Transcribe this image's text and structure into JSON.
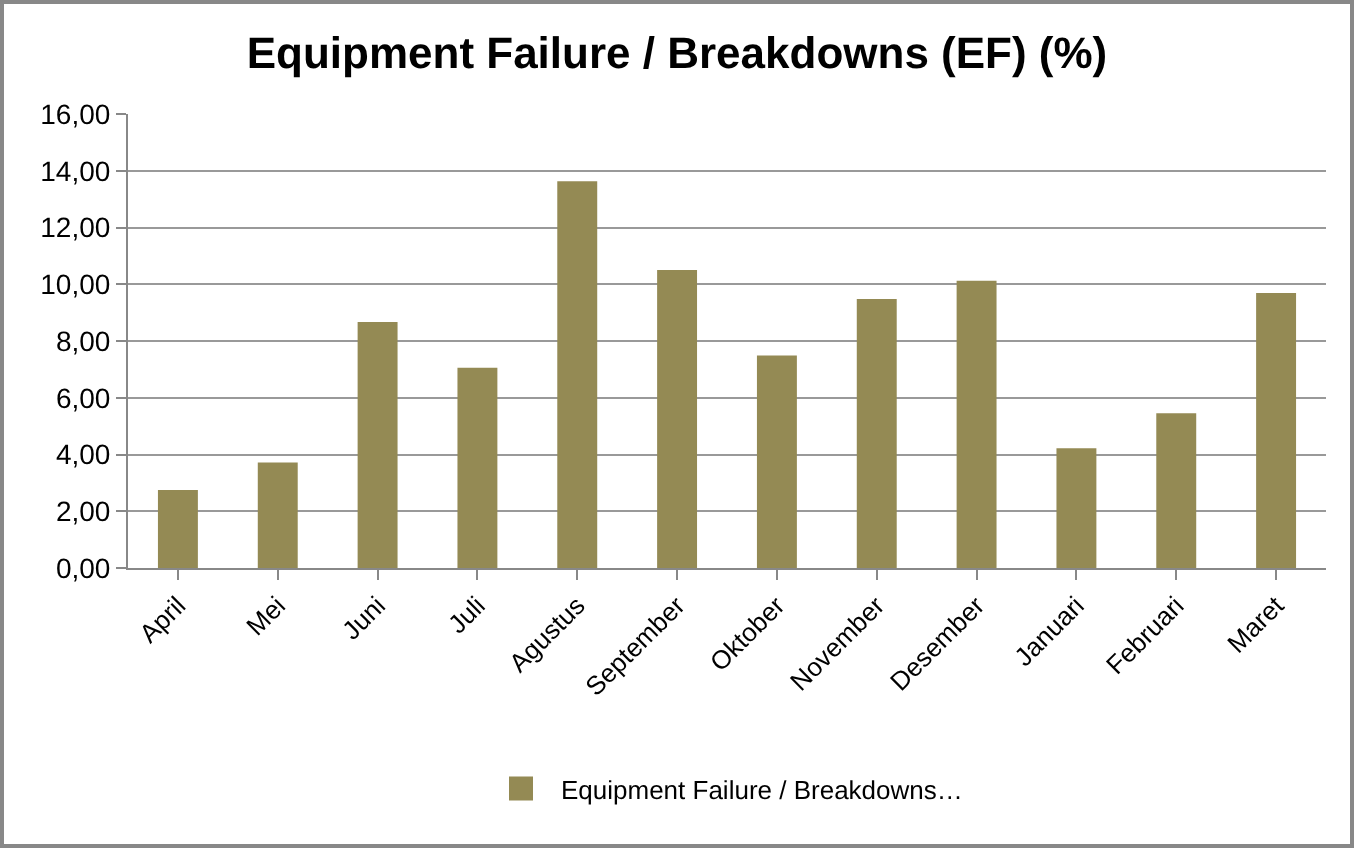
{
  "chart_data": {
    "type": "bar",
    "title": "Equipment Failure / Breakdowns (EF) (%)",
    "categories": [
      "April",
      "Mei",
      "Juni",
      "Juli",
      "Agustus",
      "September",
      "Oktober",
      "November",
      "Desember",
      "Januari",
      "Februari",
      "Maret"
    ],
    "series": [
      {
        "name": "Equipment Failure / Breakdowns…",
        "color": "#948a54",
        "values": [
          2.75,
          3.72,
          8.67,
          7.06,
          13.63,
          10.5,
          7.49,
          9.48,
          10.12,
          4.22,
          5.45,
          9.69
        ]
      }
    ],
    "ylim": [
      0,
      16
    ],
    "yticks": [
      {
        "value": 0,
        "label": "0,00"
      },
      {
        "value": 2,
        "label": "2,00"
      },
      {
        "value": 4,
        "label": "4,00"
      },
      {
        "value": 6,
        "label": "6,00"
      },
      {
        "value": 8,
        "label": "8,00"
      },
      {
        "value": 10,
        "label": "10,00"
      },
      {
        "value": 12,
        "label": "12,00"
      },
      {
        "value": 14,
        "label": "14,00"
      },
      {
        "value": 16,
        "label": "16,00"
      }
    ],
    "grid": "y",
    "legend": "bottom"
  }
}
